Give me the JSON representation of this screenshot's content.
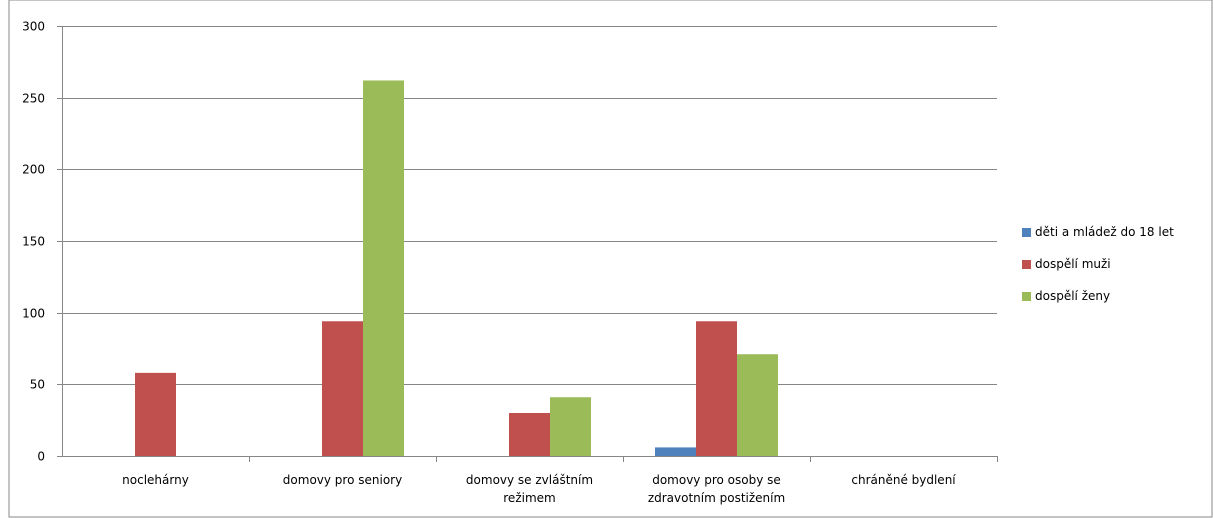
{
  "chart_data": {
    "type": "bar",
    "title": "",
    "xlabel": "",
    "ylabel": "",
    "categories": [
      [
        "noclehárny"
      ],
      [
        "domovy pro seniory"
      ],
      [
        "domovy se zvláštním",
        "režimem"
      ],
      [
        "domovy pro osoby se",
        "zdravotním postižením"
      ],
      [
        "chráněné bydlení"
      ]
    ],
    "series": [
      {
        "name": "děti a mládež do 18 let",
        "color": "#4F81BD",
        "values": [
          0,
          0,
          0,
          6,
          0
        ]
      },
      {
        "name": "dospělí muži",
        "color": "#C0504D",
        "values": [
          58,
          94,
          30,
          94,
          0
        ]
      },
      {
        "name": "dospělí ženy",
        "color": "#9BBB59",
        "values": [
          0,
          262,
          41,
          71,
          0
        ]
      }
    ],
    "ylim": [
      0,
      300
    ],
    "yticks": [
      0,
      50,
      100,
      150,
      200,
      250,
      300
    ],
    "grid": true,
    "legend_position": "right"
  }
}
